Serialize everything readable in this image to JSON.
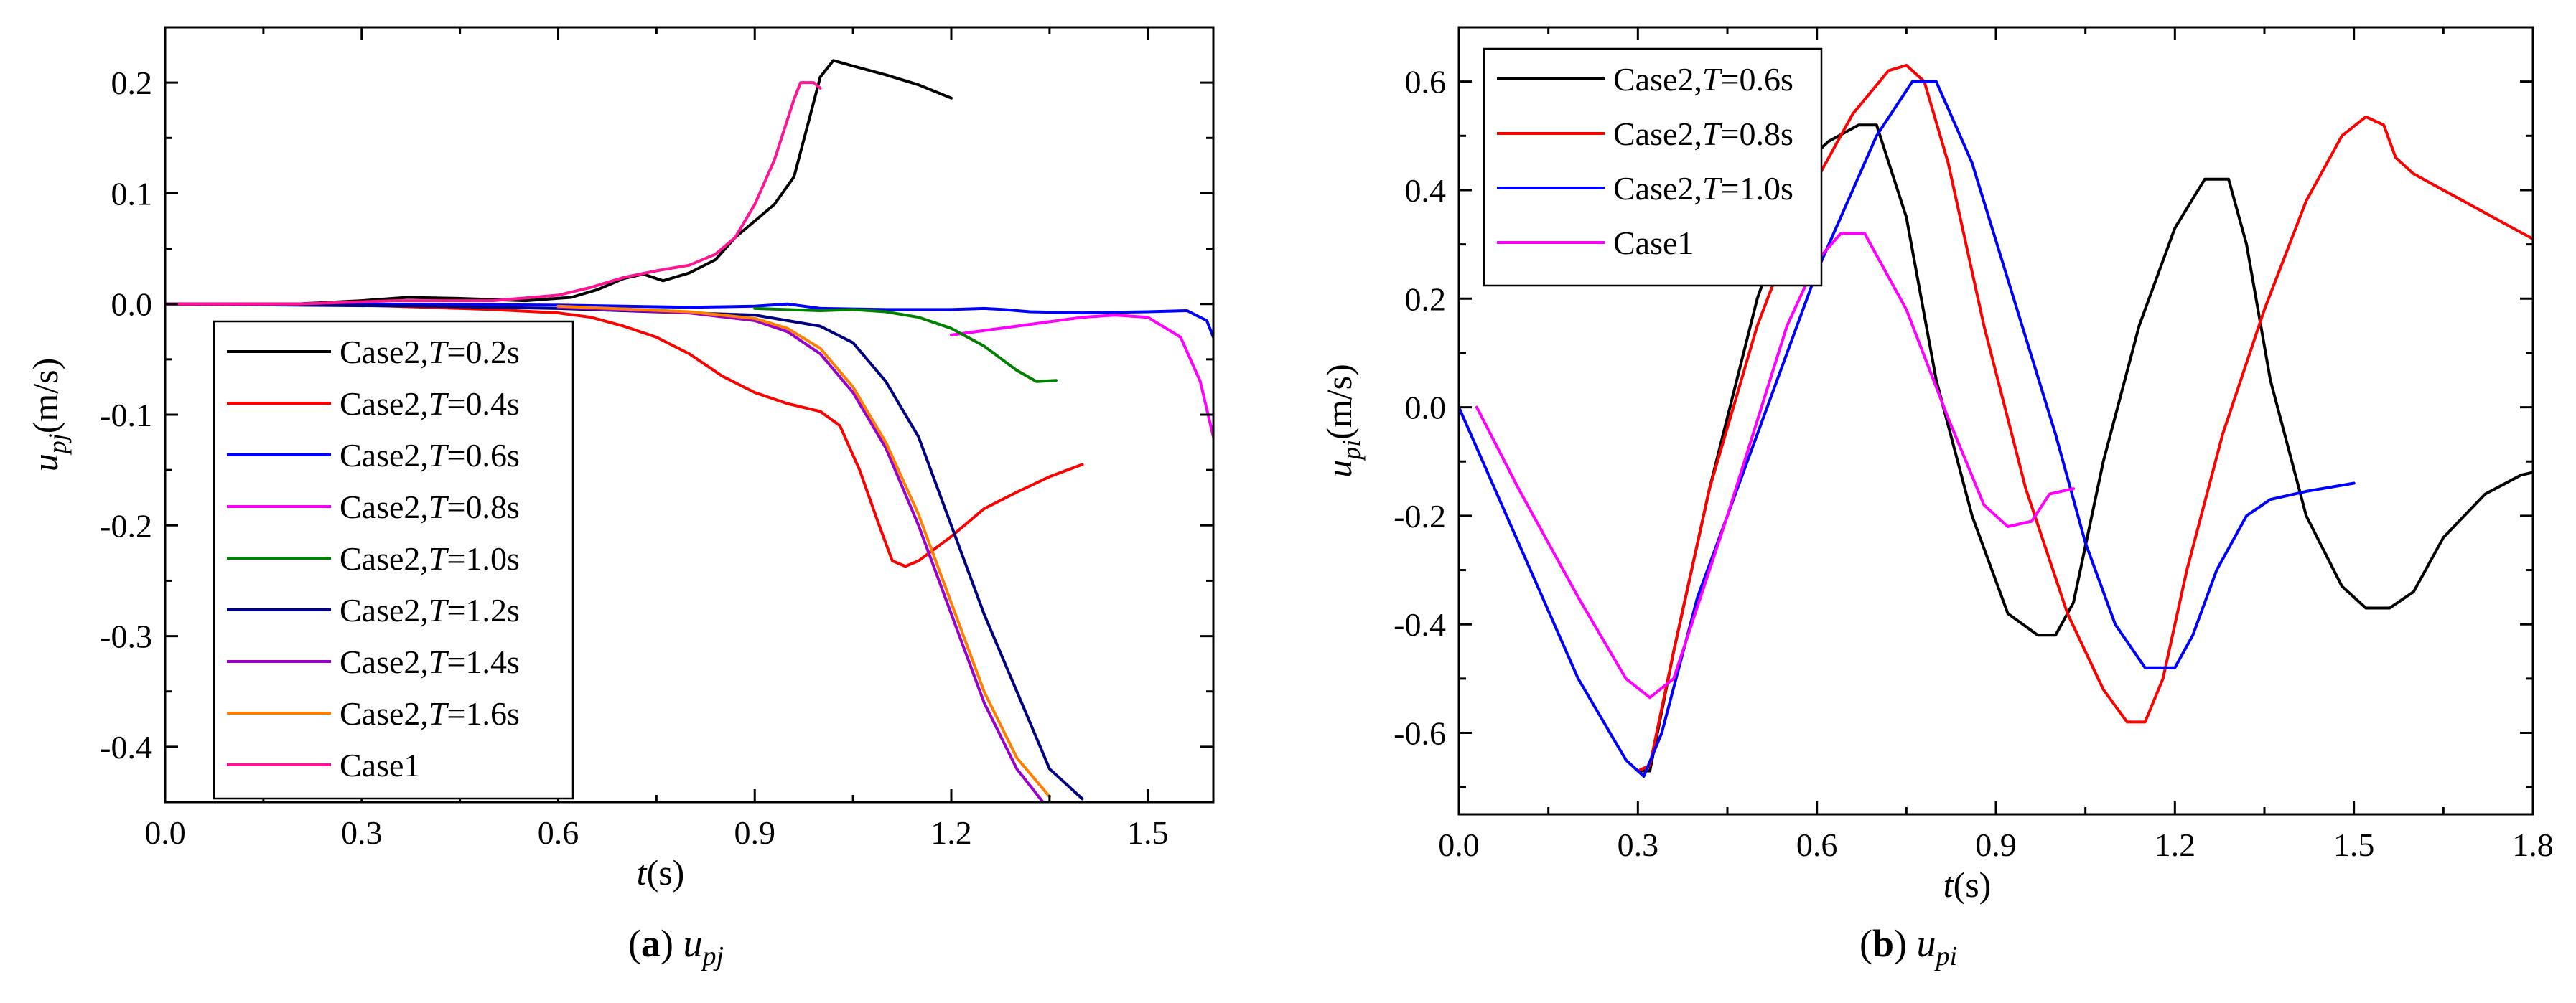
{
  "chart_data": [
    {
      "id": "a",
      "type": "line",
      "caption_letter": "a",
      "caption_var": "u",
      "caption_sub": "pj",
      "xlabel_var": "t",
      "xlabel_unit": "(s)",
      "ylabel_var": "u",
      "ylabel_sub": "pj",
      "ylabel_unit": "(m/s)",
      "xlim": [
        0,
        1.6
      ],
      "ylim": [
        -0.45,
        0.25
      ],
      "xticks": [
        0.0,
        0.3,
        0.6,
        0.9,
        1.2,
        1.5
      ],
      "xtick_labels": [
        "0.0",
        "0.3",
        "0.6",
        "0.9",
        "1.2",
        "1.5"
      ],
      "yticks": [
        0.2,
        0.1,
        0.0,
        -0.1,
        -0.2,
        -0.3,
        -0.4
      ],
      "ytick_labels": [
        "0.2",
        "0.1",
        "0.0",
        "-0.1",
        "-0.2",
        "-0.3",
        "-0.4"
      ],
      "legend_position": "bottom-left",
      "series": [
        {
          "name": "Case2,T=0.2s",
          "label_prefix": "Case2,",
          "label_var": "T",
          "label_suffix": "=0.2s",
          "color": "#000000",
          "x": [
            0,
            0.2,
            0.3,
            0.37,
            0.45,
            0.55,
            0.62,
            0.66,
            0.7,
            0.73,
            0.76,
            0.8,
            0.84,
            0.87,
            0.9,
            0.93,
            0.96,
            0.98,
            1.0,
            1.02,
            1.05,
            1.1,
            1.15,
            1.2
          ],
          "y": [
            0,
            0,
            0.003,
            0.006,
            0.005,
            0.003,
            0.006,
            0.013,
            0.023,
            0.027,
            0.021,
            0.028,
            0.04,
            0.06,
            0.075,
            0.09,
            0.115,
            0.16,
            0.205,
            0.22,
            0.215,
            0.207,
            0.198,
            0.186
          ]
        },
        {
          "name": "Case2,T=0.4s",
          "label_prefix": "Case2,",
          "label_var": "T",
          "label_suffix": "=0.4s",
          "color": "#ff0000",
          "x": [
            0,
            0.2,
            0.3,
            0.4,
            0.5,
            0.6,
            0.65,
            0.7,
            0.75,
            0.8,
            0.85,
            0.9,
            0.95,
            1.0,
            1.03,
            1.06,
            1.09,
            1.11,
            1.13,
            1.15,
            1.2,
            1.25,
            1.3,
            1.35,
            1.4
          ],
          "y": [
            0,
            0,
            -0.001,
            -0.003,
            -0.005,
            -0.008,
            -0.012,
            -0.02,
            -0.03,
            -0.045,
            -0.065,
            -0.08,
            -0.09,
            -0.097,
            -0.11,
            -0.15,
            -0.2,
            -0.232,
            -0.237,
            -0.232,
            -0.21,
            -0.185,
            -0.17,
            -0.156,
            -0.145
          ]
        },
        {
          "name": "Case2,T=0.6s",
          "label_prefix": "Case2,",
          "label_var": "T",
          "label_suffix": "=0.6s",
          "color": "#0000ff",
          "x": [
            0,
            0.3,
            0.6,
            0.7,
            0.8,
            0.9,
            0.95,
            1.0,
            1.1,
            1.2,
            1.25,
            1.28,
            1.32,
            1.4,
            1.5,
            1.56,
            1.59,
            1.6
          ],
          "y": [
            0,
            0,
            -0.001,
            -0.002,
            -0.003,
            -0.002,
            0.0,
            -0.004,
            -0.005,
            -0.005,
            -0.004,
            -0.005,
            -0.007,
            -0.008,
            -0.007,
            -0.006,
            -0.015,
            -0.03
          ]
        },
        {
          "name": "Case2,T=0.8s",
          "label_prefix": "Case2,",
          "label_var": "T",
          "label_suffix": "=0.8s",
          "color": "#ff00ff",
          "x": [
            1.2,
            1.3,
            1.4,
            1.45,
            1.5,
            1.55,
            1.58,
            1.6
          ],
          "y": [
            -0.028,
            -0.02,
            -0.012,
            -0.01,
            -0.012,
            -0.03,
            -0.07,
            -0.12
          ]
        },
        {
          "name": "Case2,T=1.0s",
          "label_prefix": "Case2,",
          "label_var": "T",
          "label_suffix": "=1.0s",
          "color": "#008000",
          "x": [
            0.9,
            1.0,
            1.05,
            1.1,
            1.15,
            1.2,
            1.25,
            1.3,
            1.33,
            1.36
          ],
          "y": [
            -0.004,
            -0.006,
            -0.005,
            -0.007,
            -0.012,
            -0.022,
            -0.038,
            -0.06,
            -0.07,
            -0.069
          ]
        },
        {
          "name": "Case2,T=1.2s",
          "label_prefix": "Case2,",
          "label_var": "T",
          "label_suffix": "=1.2s",
          "color": "#000080",
          "x": [
            0,
            0.4,
            0.6,
            0.8,
            0.9,
            1.0,
            1.05,
            1.1,
            1.15,
            1.2,
            1.25,
            1.3,
            1.35,
            1.4
          ],
          "y": [
            0,
            -0.002,
            -0.004,
            -0.008,
            -0.01,
            -0.02,
            -0.035,
            -0.07,
            -0.12,
            -0.2,
            -0.28,
            -0.35,
            -0.42,
            -0.447
          ]
        },
        {
          "name": "Case2,T=1.4s",
          "label_prefix": "Case2,",
          "label_var": "T",
          "label_suffix": "=1.4s",
          "color": "#9900cc",
          "x": [
            0.6,
            0.8,
            0.9,
            0.95,
            1.0,
            1.05,
            1.1,
            1.15,
            1.2,
            1.25,
            1.3,
            1.34
          ],
          "y": [
            -0.003,
            -0.008,
            -0.015,
            -0.025,
            -0.045,
            -0.08,
            -0.13,
            -0.2,
            -0.28,
            -0.36,
            -0.42,
            -0.45
          ]
        },
        {
          "name": "Case2,T=1.6s",
          "label_prefix": "Case2,",
          "label_var": "T",
          "label_suffix": "=1.6s",
          "color": "#ff8000",
          "x": [
            0.6,
            0.8,
            0.9,
            0.95,
            1.0,
            1.05,
            1.1,
            1.15,
            1.2,
            1.25,
            1.3,
            1.35
          ],
          "y": [
            -0.002,
            -0.007,
            -0.013,
            -0.022,
            -0.04,
            -0.075,
            -0.125,
            -0.19,
            -0.27,
            -0.35,
            -0.41,
            -0.445
          ]
        },
        {
          "name": "Case1",
          "label_prefix": "Case1",
          "label_var": "",
          "label_suffix": "",
          "color": "#ff1493",
          "x": [
            0,
            0.2,
            0.35,
            0.5,
            0.6,
            0.65,
            0.7,
            0.75,
            0.8,
            0.84,
            0.87,
            0.9,
            0.93,
            0.96,
            0.97,
            0.99,
            1.0
          ],
          "y": [
            0,
            0,
            0.003,
            0.003,
            0.008,
            0.015,
            0.024,
            0.03,
            0.035,
            0.045,
            0.06,
            0.09,
            0.13,
            0.185,
            0.2,
            0.2,
            0.195
          ]
        }
      ]
    },
    {
      "id": "b",
      "type": "line",
      "caption_letter": "b",
      "caption_var": "u",
      "caption_sub": "pi",
      "xlabel_var": "t",
      "xlabel_unit": "(s)",
      "ylabel_var": "u",
      "ylabel_sub": "pi",
      "ylabel_unit": "(m/s)",
      "xlim": [
        0,
        1.8
      ],
      "ylim": [
        -0.75,
        0.7
      ],
      "xticks": [
        0.0,
        0.3,
        0.6,
        0.9,
        1.2,
        1.5,
        1.8
      ],
      "xtick_labels": [
        "0.0",
        "0.3",
        "0.6",
        "0.9",
        "1.2",
        "1.5",
        "1.8"
      ],
      "yticks": [
        0.6,
        0.4,
        0.2,
        0.0,
        -0.2,
        -0.4,
        -0.6
      ],
      "ytick_labels": [
        "0.6",
        "0.4",
        "0.2",
        "0.0",
        "-0.2",
        "-0.4",
        "-0.6"
      ],
      "legend_position": "top-left",
      "series": [
        {
          "name": "Case2,T=0.6s",
          "label_prefix": "Case2,",
          "label_var": "T",
          "label_suffix": "=0.6s",
          "color": "#000000",
          "x": [
            0.3,
            0.32,
            0.36,
            0.42,
            0.5,
            0.58,
            0.62,
            0.67,
            0.7,
            0.75,
            0.8,
            0.86,
            0.92,
            0.97,
            1.0,
            1.03,
            1.08,
            1.14,
            1.2,
            1.25,
            1.29,
            1.32,
            1.36,
            1.42,
            1.48,
            1.52,
            1.56,
            1.6,
            1.65,
            1.72,
            1.78,
            1.8
          ],
          "y": [
            -0.67,
            -0.67,
            -0.45,
            -0.15,
            0.2,
            0.45,
            0.49,
            0.52,
            0.52,
            0.35,
            0.05,
            -0.2,
            -0.38,
            -0.42,
            -0.42,
            -0.36,
            -0.1,
            0.15,
            0.33,
            0.42,
            0.42,
            0.3,
            0.05,
            -0.2,
            -0.33,
            -0.37,
            -0.37,
            -0.34,
            -0.24,
            -0.16,
            -0.125,
            -0.12
          ]
        },
        {
          "name": "Case2,T=0.8s",
          "label_prefix": "Case2,",
          "label_var": "T",
          "label_suffix": "=0.8s",
          "color": "#ff0000",
          "x": [
            0.3,
            0.32,
            0.36,
            0.42,
            0.5,
            0.58,
            0.66,
            0.72,
            0.75,
            0.78,
            0.82,
            0.88,
            0.95,
            1.02,
            1.08,
            1.12,
            1.15,
            1.18,
            1.22,
            1.28,
            1.35,
            1.42,
            1.48,
            1.52,
            1.55,
            1.57,
            1.6,
            1.7,
            1.8
          ],
          "y": [
            -0.67,
            -0.66,
            -0.45,
            -0.15,
            0.15,
            0.38,
            0.54,
            0.62,
            0.63,
            0.6,
            0.45,
            0.15,
            -0.15,
            -0.38,
            -0.52,
            -0.58,
            -0.58,
            -0.5,
            -0.3,
            -0.05,
            0.18,
            0.38,
            0.5,
            0.535,
            0.52,
            0.46,
            0.43,
            0.37,
            0.31
          ]
        },
        {
          "name": "Case2,T=1.0s",
          "label_prefix": "Case2,",
          "label_var": "T",
          "label_suffix": "=1.0s",
          "color": "#0000ff",
          "x": [
            0,
            0.1,
            0.2,
            0.28,
            0.31,
            0.34,
            0.4,
            0.5,
            0.6,
            0.7,
            0.76,
            0.8,
            0.86,
            0.93,
            1.0,
            1.05,
            1.1,
            1.15,
            1.2,
            1.23,
            1.27,
            1.32,
            1.36,
            1.42,
            1.5
          ],
          "y": [
            0,
            -0.25,
            -0.5,
            -0.65,
            -0.68,
            -0.6,
            -0.35,
            -0.05,
            0.25,
            0.5,
            0.6,
            0.6,
            0.45,
            0.2,
            -0.05,
            -0.25,
            -0.4,
            -0.48,
            -0.48,
            -0.42,
            -0.3,
            -0.2,
            -0.17,
            -0.155,
            -0.14
          ]
        },
        {
          "name": "Case1",
          "label_prefix": "Case1",
          "label_var": "",
          "label_suffix": "",
          "color": "#ff00ff",
          "x": [
            0.03,
            0.1,
            0.2,
            0.28,
            0.32,
            0.36,
            0.45,
            0.55,
            0.6,
            0.64,
            0.68,
            0.75,
            0.82,
            0.88,
            0.92,
            0.96,
            0.99,
            1.03
          ],
          "y": [
            0,
            -0.15,
            -0.35,
            -0.5,
            -0.535,
            -0.5,
            -0.2,
            0.15,
            0.27,
            0.32,
            0.32,
            0.18,
            -0.02,
            -0.18,
            -0.22,
            -0.21,
            -0.16,
            -0.15
          ]
        }
      ]
    }
  ]
}
